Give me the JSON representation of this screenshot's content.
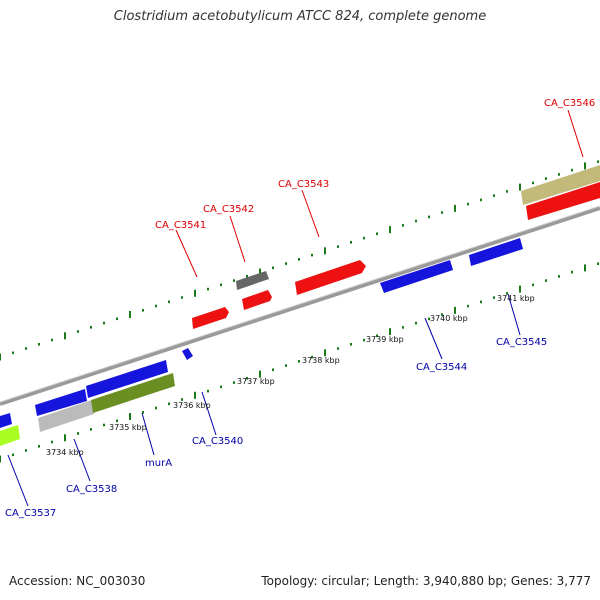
{
  "title": "Clostridium acetobutylicum ATCC 824, complete genome",
  "footer": {
    "accession": "Accession: NC_003030",
    "summary": "Topology: circular; Length: 3,940,880 bp; Genes: 3,777"
  },
  "colors": {
    "forward_label": "#dd0000",
    "reverse_label": "#0000aa",
    "tick": "#1a7a1a",
    "backbone": "#888888"
  },
  "scale_labels": [
    "3734 kbp",
    "3735 kbp",
    "3736 kbp",
    "3737 kbp",
    "3738 kbp",
    "3739 kbp",
    "3740 kbp",
    "3741 kbp"
  ],
  "gene_labels": [
    {
      "name": "CA_C3537",
      "strand": "reverse"
    },
    {
      "name": "CA_C3538",
      "strand": "reverse"
    },
    {
      "name": "murA",
      "strand": "reverse"
    },
    {
      "name": "CA_C3540",
      "strand": "reverse"
    },
    {
      "name": "CA_C3541",
      "strand": "forward"
    },
    {
      "name": "CA_C3542",
      "strand": "forward"
    },
    {
      "name": "CA_C3543",
      "strand": "forward"
    },
    {
      "name": "CA_C3544",
      "strand": "reverse"
    },
    {
      "name": "CA_C3545",
      "strand": "reverse"
    },
    {
      "name": "CA_C3546",
      "strand": "forward"
    }
  ],
  "gene_colors": {
    "red": "#ee1111",
    "blue": "#1515dd",
    "gray": "#666666",
    "light_gray": "#bbbbbb",
    "olive": "#6b8e23",
    "lime": "#aaff22",
    "khaki": "#c2b97a"
  }
}
